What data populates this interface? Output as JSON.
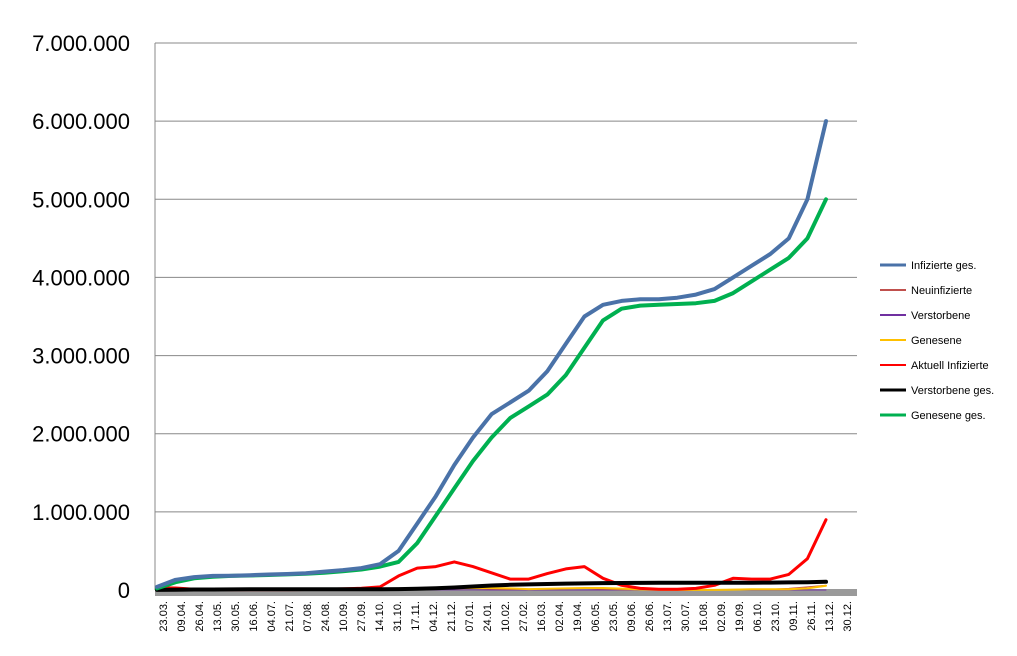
{
  "chart_data": {
    "type": "line",
    "title": "",
    "xlabel": "",
    "ylabel": "",
    "ylim": [
      0,
      7000000
    ],
    "yticks": [
      0,
      1000000,
      2000000,
      3000000,
      4000000,
      5000000,
      6000000,
      7000000
    ],
    "ytick_labels": [
      "0",
      "1.000.000",
      "2.000.000",
      "3.000.000",
      "4.000.000",
      "5.000.000",
      "6.000.000",
      "7.000.000"
    ],
    "xtick_labels": [
      "23.03.",
      "09.04.",
      "26.04.",
      "13.05.",
      "30.05.",
      "16.06.",
      "04.07.",
      "21.07.",
      "07.08.",
      "24.08.",
      "10.09.",
      "27.09.",
      "14.10.",
      "31.10.",
      "17.11.",
      "04.12.",
      "21.12.",
      "07.01.",
      "24.01.",
      "10.02.",
      "27.02.",
      "16.03.",
      "02.04.",
      "19.04.",
      "06.05.",
      "23.05.",
      "09.06.",
      "26.06.",
      "13.07.",
      "30.07.",
      "16.08.",
      "02.09.",
      "19.09.",
      "06.10.",
      "23.10.",
      "09.11.",
      "26.11.",
      "13.12.",
      "30.12."
    ],
    "grid": true,
    "legend_position": "right",
    "series": [
      {
        "name": "Infizierte ges.",
        "color": "#4a72a8",
        "width": 4,
        "values": [
          40000,
          130000,
          165000,
          180000,
          183000,
          190000,
          198000,
          205000,
          215000,
          235000,
          255000,
          280000,
          330000,
          500000,
          850000,
          1200000,
          1600000,
          1950000,
          2250000,
          2400000,
          2550000,
          2800000,
          3150000,
          3500000,
          3650000,
          3700000,
          3720000,
          3720000,
          3740000,
          3780000,
          3850000,
          4000000,
          4150000,
          4300000,
          4500000,
          5000000,
          6000000
        ]
      },
      {
        "name": "Genesene ges.",
        "color": "#00b050",
        "width": 4,
        "values": [
          20000,
          100000,
          150000,
          170000,
          180000,
          185000,
          192000,
          200000,
          208000,
          220000,
          240000,
          262000,
          300000,
          360000,
          600000,
          950000,
          1300000,
          1650000,
          1950000,
          2200000,
          2350000,
          2500000,
          2750000,
          3100000,
          3450000,
          3600000,
          3640000,
          3650000,
          3660000,
          3670000,
          3700000,
          3800000,
          3950000,
          4100000,
          4250000,
          4500000,
          5000000
        ]
      },
      {
        "name": "Aktuell Infizierte",
        "color": "#ff0000",
        "width": 3,
        "values": [
          30000,
          25000,
          10000,
          8000,
          5000,
          5000,
          5000,
          5000,
          7000,
          10000,
          14000,
          22000,
          40000,
          180000,
          280000,
          300000,
          360000,
          300000,
          220000,
          140000,
          140000,
          210000,
          270000,
          300000,
          150000,
          60000,
          20000,
          10000,
          10000,
          20000,
          60000,
          150000,
          140000,
          140000,
          200000,
          400000,
          900000
        ]
      },
      {
        "name": "Verstorbene ges.",
        "color": "#000000",
        "width": 4,
        "values": [
          1000,
          4000,
          6000,
          7000,
          8000,
          8500,
          9000,
          9200,
          9300,
          9400,
          9500,
          9700,
          10000,
          11000,
          15000,
          22000,
          32000,
          45000,
          58000,
          67000,
          72000,
          77000,
          82000,
          85000,
          88000,
          90000,
          91000,
          91500,
          92000,
          92300,
          92500,
          93000,
          94000,
          95000,
          97000,
          100000,
          105000
        ]
      },
      {
        "name": "Genesene",
        "color": "#ffc000",
        "width": 2,
        "values": [
          2000,
          3000,
          2000,
          1000,
          500,
          300,
          300,
          300,
          500,
          800,
          1200,
          1500,
          2000,
          10000,
          18000,
          20000,
          22000,
          25000,
          25000,
          20000,
          12000,
          15000,
          20000,
          25000,
          25000,
          18000,
          8000,
          2000,
          1000,
          800,
          1500,
          5000,
          10000,
          9000,
          10000,
          20000,
          55000
        ]
      },
      {
        "name": "Neuinfizierte",
        "color": "#c0504d",
        "width": 1,
        "values": [
          3000,
          2500,
          1000,
          500,
          400,
          300,
          400,
          500,
          800,
          1200,
          1500,
          2000,
          4000,
          15000,
          22000,
          22000,
          25000,
          20000,
          12000,
          8000,
          8000,
          15000,
          20000,
          20000,
          10000,
          3000,
          1000,
          500,
          800,
          1500,
          4000,
          8000,
          9000,
          10000,
          20000,
          40000,
          60000
        ]
      },
      {
        "name": "Verstorbene",
        "color": "#7030a0",
        "width": 1,
        "values": [
          100,
          200,
          100,
          50,
          30,
          20,
          20,
          20,
          20,
          30,
          40,
          60,
          100,
          300,
          500,
          700,
          900,
          800,
          500,
          300,
          200,
          200,
          250,
          250,
          200,
          100,
          50,
          30,
          20,
          20,
          30,
          60,
          80,
          100,
          150,
          300,
          500
        ]
      }
    ],
    "legend_order": [
      "Infizierte ges.",
      "Neuinfizierte",
      "Verstorbene",
      "Genesene",
      "Aktuell Infizierte",
      "Verstorbene ges.",
      "Genesene ges."
    ]
  }
}
